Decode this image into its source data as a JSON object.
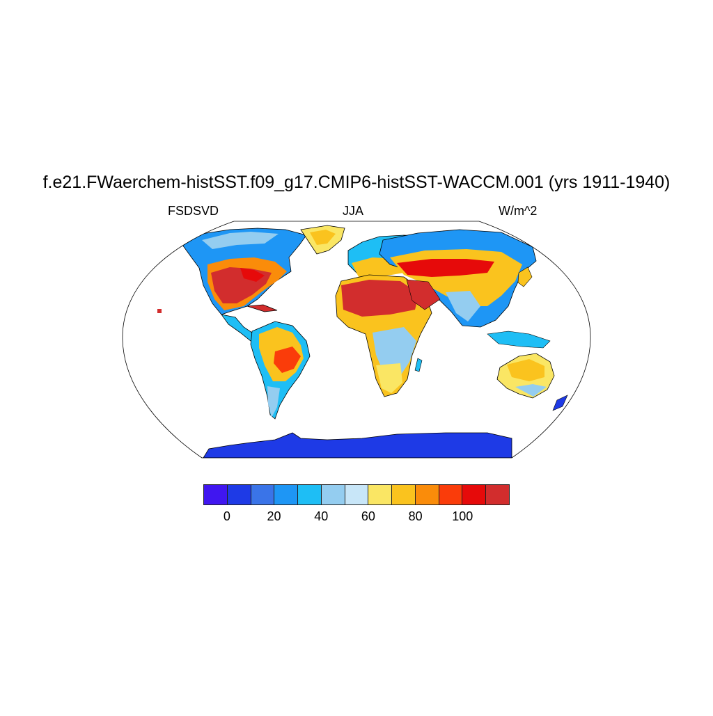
{
  "title": "f.e21.FWaerchem-histSST.f09_g17.CMIP6-histSST-WACCM.001 (yrs 1911-1940)",
  "variable": "FSDSVD",
  "season": "JJA",
  "units": "W/m^2",
  "colorbar": {
    "colors": [
      "#4016f0",
      "#1e3ae6",
      "#3a74e8",
      "#1e96f5",
      "#1ebef5",
      "#94cdf0",
      "#c8e6f8",
      "#fae664",
      "#fac31e",
      "#fa8c0a",
      "#fa3c0a",
      "#e60a0a",
      "#d22d2d"
    ],
    "tick_labels": [
      "0",
      "20",
      "40",
      "60",
      "80",
      "100"
    ]
  },
  "map": {
    "projection": "Robinson",
    "ocean_color": "#ffffff",
    "outline_color": "#000000"
  }
}
